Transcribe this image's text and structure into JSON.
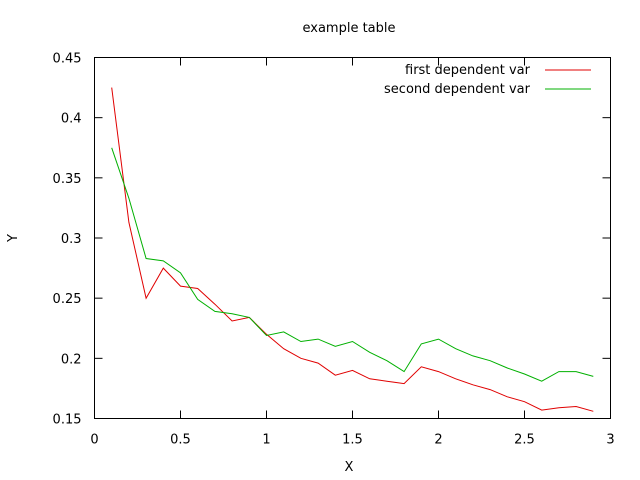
{
  "chart_data": {
    "type": "line",
    "title": "example table",
    "xlabel": "X",
    "ylabel": "Y",
    "xlim": [
      0,
      3
    ],
    "ylim": [
      0.15,
      0.45
    ],
    "xticks": [
      0,
      0.5,
      1,
      1.5,
      2,
      2.5,
      3
    ],
    "xtick_labels": [
      "0",
      "0.5",
      "1",
      "1.5",
      "2",
      "2.5",
      "3"
    ],
    "yticks": [
      0.15,
      0.2,
      0.25,
      0.3,
      0.35,
      0.4,
      0.45
    ],
    "ytick_labels": [
      "0.15",
      "0.2",
      "0.25",
      "0.3",
      "0.35",
      "0.4",
      "0.45"
    ],
    "grid": false,
    "legend_position": "top-right",
    "x": [
      0.1,
      0.2,
      0.3,
      0.4,
      0.5,
      0.6,
      0.7,
      0.8,
      0.9,
      1.0,
      1.1,
      1.2,
      1.3,
      1.4,
      1.5,
      1.6,
      1.7,
      1.8,
      1.9,
      2.0,
      2.1,
      2.2,
      2.3,
      2.4,
      2.5,
      2.6,
      2.7,
      2.8,
      2.9
    ],
    "series": [
      {
        "name": "first dependent var",
        "color": "#e00000",
        "values": [
          0.425,
          0.313,
          0.25,
          0.275,
          0.26,
          0.258,
          0.245,
          0.231,
          0.234,
          0.22,
          0.208,
          0.2,
          0.196,
          0.186,
          0.19,
          0.183,
          0.181,
          0.179,
          0.193,
          0.189,
          0.183,
          0.178,
          0.174,
          0.168,
          0.164,
          0.157,
          0.159,
          0.16,
          0.156
        ]
      },
      {
        "name": "second dependent var",
        "color": "#00b000",
        "values": [
          0.375,
          0.333,
          0.283,
          0.281,
          0.271,
          0.249,
          0.239,
          0.237,
          0.234,
          0.219,
          0.222,
          0.214,
          0.216,
          0.21,
          0.214,
          0.205,
          0.198,
          0.189,
          0.212,
          0.216,
          0.208,
          0.202,
          0.198,
          0.192,
          0.187,
          0.181,
          0.189,
          0.189,
          0.185
        ]
      }
    ]
  }
}
